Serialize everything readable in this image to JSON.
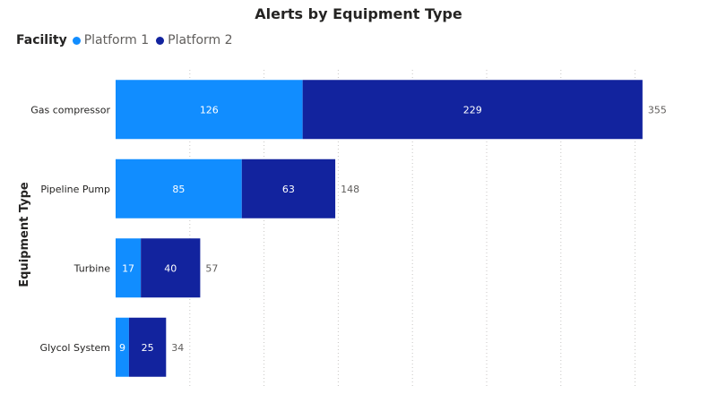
{
  "chart_data": {
    "type": "bar",
    "orientation": "horizontal",
    "stacked": true,
    "title": "Alerts by Equipment Type",
    "ylabel": "Equipment Type",
    "xlabel": "",
    "legend_title": "Facility",
    "legend_position": "top-left",
    "categories": [
      "Gas compressor",
      "Pipeline Pump",
      "Turbine",
      "Glycol System"
    ],
    "series": [
      {
        "name": "Platform 1",
        "values": [
          126,
          85,
          17,
          9
        ],
        "color": "#118dff"
      },
      {
        "name": "Platform 2",
        "values": [
          229,
          63,
          40,
          25
        ],
        "color": "#12239e"
      }
    ],
    "totals": [
      355,
      148,
      57,
      34
    ],
    "xlim": [
      0,
      375
    ],
    "grid": true
  }
}
